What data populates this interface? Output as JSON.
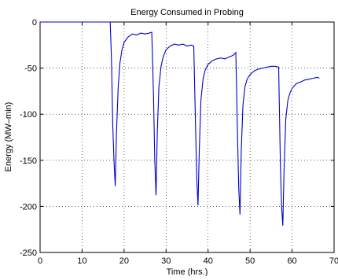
{
  "chart_data": {
    "type": "line",
    "title": "Energy Consumed in Probing",
    "xlabel": "Time (hrs.)",
    "ylabel": "Energy (MW–min)",
    "xlim": [
      0,
      70
    ],
    "ylim": [
      -250,
      0
    ],
    "xticks": [
      "0",
      "10",
      "20",
      "30",
      "40",
      "50",
      "60",
      "70"
    ],
    "yticks": [
      "0",
      "-50",
      "-100",
      "-150",
      "-200",
      "-250"
    ],
    "grid": true,
    "grid_style": "dotted",
    "line_color": "#0000cc",
    "series": [
      {
        "x": [
          0,
          16.7,
          17.0,
          17.3,
          17.6,
          17.9,
          18.2,
          18.6,
          19.0,
          19.5,
          20.0,
          21.0,
          22.0,
          23.0,
          24.0,
          25.0,
          26.0,
          26.6,
          27.0,
          27.3,
          27.6,
          27.9,
          28.3,
          28.8,
          29.3,
          30.0,
          31.0,
          32.0,
          33.0,
          34.0,
          35.0,
          36.0,
          36.6,
          37.0,
          37.3,
          37.6,
          37.9,
          38.3,
          38.8,
          39.3,
          40.0,
          41.0,
          42.0,
          43.0,
          44.0,
          45.0,
          46.0,
          46.6,
          47.0,
          47.3,
          47.6,
          47.9,
          48.3,
          48.8,
          49.3,
          50.0,
          51.0,
          52.0,
          53.0,
          54.0,
          55.0,
          56.0,
          56.8,
          57.2,
          57.5,
          57.8,
          58.1,
          58.5,
          59.0,
          59.5,
          60.0,
          61.0,
          62.0,
          63.0,
          64.0,
          65.0,
          66.0,
          66.5
        ],
        "y": [
          0,
          0,
          -40,
          -110,
          -150,
          -178,
          -120,
          -70,
          -45,
          -30,
          -22,
          -16,
          -13,
          -14,
          -12,
          -13,
          -12,
          -11,
          -80,
          -150,
          -188,
          -120,
          -70,
          -48,
          -38,
          -30,
          -26,
          -24,
          -25,
          -24,
          -26,
          -25,
          -26,
          -110,
          -170,
          -199,
          -140,
          -85,
          -62,
          -52,
          -46,
          -42,
          -40,
          -39,
          -40,
          -38,
          -36,
          -33,
          -120,
          -180,
          -209,
          -140,
          -90,
          -70,
          -62,
          -57,
          -53,
          -51,
          -50,
          -49,
          -48,
          -48,
          -49,
          -150,
          -200,
          -221,
          -160,
          -105,
          -85,
          -77,
          -72,
          -67,
          -65,
          -63,
          -62,
          -61,
          -60,
          -61
        ]
      }
    ]
  }
}
